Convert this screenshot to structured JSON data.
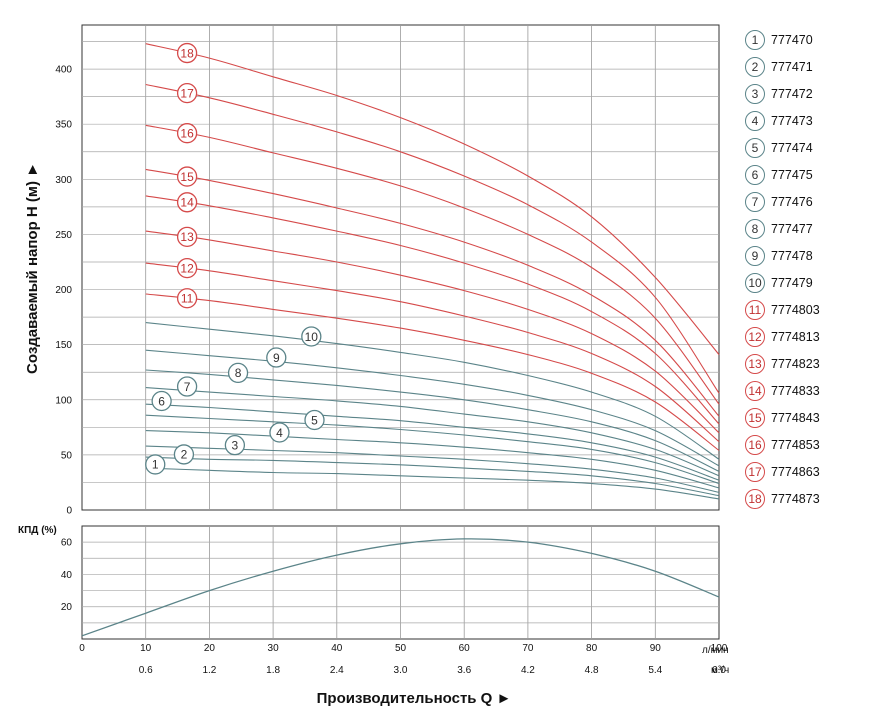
{
  "chart_data": [
    {
      "type": "line",
      "ylabel": "Создаваемый напор Н (м) ►",
      "xlabel": "Производительность Q ►",
      "x_unit_primary": "л/мин",
      "x_unit_secondary": "м³/ч",
      "ylim": [
        0,
        440
      ],
      "xlim": [
        0,
        100
      ],
      "x_ticks": [
        "0",
        "10",
        "20",
        "30",
        "40",
        "50",
        "60",
        "70",
        "80",
        "90",
        "100"
      ],
      "x_ticks_secondary": [
        "0.6",
        "1.2",
        "1.8",
        "2.4",
        "3.0",
        "3.6",
        "4.2",
        "4.8",
        "5.4",
        "6.0"
      ],
      "y_ticks": [
        "0",
        "50",
        "100",
        "150",
        "200",
        "250",
        "300",
        "350",
        "400"
      ],
      "grid": true,
      "legend_position": "right",
      "x": [
        10,
        20,
        30,
        40,
        50,
        60,
        70,
        80,
        90,
        100
      ],
      "series": [
        {
          "name": "777470",
          "label": "1",
          "color": "#5b8489",
          "values": [
            38,
            36,
            34,
            33,
            31,
            29,
            27,
            24,
            19,
            10
          ]
        },
        {
          "name": "777471",
          "label": "2",
          "color": "#5b8489",
          "values": [
            48,
            46,
            45,
            43,
            41,
            38,
            35,
            31,
            24,
            13
          ]
        },
        {
          "name": "777472",
          "label": "3",
          "color": "#5b8489",
          "values": [
            58,
            56,
            54,
            52,
            49,
            46,
            42,
            37,
            29,
            16
          ]
        },
        {
          "name": "777473",
          "label": "4",
          "color": "#5b8489",
          "values": [
            72,
            70,
            67,
            64,
            61,
            57,
            52,
            46,
            36,
            20
          ]
        },
        {
          "name": "777474",
          "label": "5",
          "color": "#5b8489",
          "values": [
            86,
            83,
            80,
            77,
            73,
            68,
            62,
            55,
            43,
            24
          ]
        },
        {
          "name": "777475",
          "label": "6",
          "color": "#5b8489",
          "values": [
            96,
            93,
            89,
            85,
            81,
            75,
            69,
            61,
            48,
            27
          ]
        },
        {
          "name": "777476",
          "label": "7",
          "color": "#5b8489",
          "values": [
            111,
            107,
            103,
            99,
            94,
            87,
            80,
            70,
            55,
            31
          ]
        },
        {
          "name": "777477",
          "label": "8",
          "color": "#5b8489",
          "values": [
            127,
            123,
            118,
            113,
            107,
            100,
            91,
            80,
            63,
            35
          ]
        },
        {
          "name": "777478",
          "label": "9",
          "color": "#5b8489",
          "values": [
            145,
            140,
            135,
            129,
            122,
            114,
            104,
            91,
            72,
            40
          ]
        },
        {
          "name": "777479",
          "label": "10",
          "color": "#5b8489",
          "values": [
            170,
            164,
            158,
            151,
            143,
            134,
            122,
            107,
            85,
            46
          ]
        },
        {
          "name": "7774803",
          "label": "11",
          "color": "#d54a4a",
          "values": [
            196,
            190,
            182,
            174,
            165,
            154,
            141,
            124,
            98,
            54
          ]
        },
        {
          "name": "7774813",
          "label": "12",
          "color": "#d54a4a",
          "values": [
            224,
            217,
            208,
            199,
            189,
            176,
            161,
            142,
            112,
            62
          ]
        },
        {
          "name": "7774823",
          "label": "13",
          "color": "#d54a4a",
          "values": [
            253,
            245,
            235,
            225,
            213,
            199,
            182,
            160,
            126,
            70
          ]
        },
        {
          "name": "7774833",
          "label": "14",
          "color": "#d54a4a",
          "values": [
            285,
            276,
            265,
            253,
            240,
            224,
            205,
            180,
            142,
            78
          ]
        },
        {
          "name": "7774843",
          "label": "15",
          "color": "#d54a4a",
          "values": [
            309,
            299,
            287,
            274,
            260,
            243,
            222,
            195,
            154,
            85
          ]
        },
        {
          "name": "7774853",
          "label": "16",
          "color": "#d54a4a",
          "values": [
            349,
            338,
            324,
            310,
            294,
            274,
            250,
            220,
            174,
            96
          ]
        },
        {
          "name": "7774863",
          "label": "17",
          "color": "#d54a4a",
          "values": [
            386,
            374,
            359,
            343,
            325,
            303,
            277,
            243,
            193,
            106
          ]
        },
        {
          "name": "7774873",
          "label": "18",
          "color": "#d54a4a",
          "values": [
            423,
            410,
            393,
            376,
            356,
            332,
            303,
            266,
            211,
            141
          ]
        }
      ]
    },
    {
      "type": "line",
      "ylabel": "КПД (%)",
      "ylim": [
        0,
        70
      ],
      "y_ticks": [
        "20",
        "40",
        "60"
      ],
      "grid": true,
      "x": [
        0,
        10,
        20,
        30,
        40,
        50,
        60,
        70,
        80,
        90,
        100
      ],
      "series": [
        {
          "color": "#5b8489",
          "values": [
            2,
            16,
            30,
            42,
            52,
            59,
            62,
            60,
            53,
            42,
            26
          ]
        }
      ]
    }
  ]
}
